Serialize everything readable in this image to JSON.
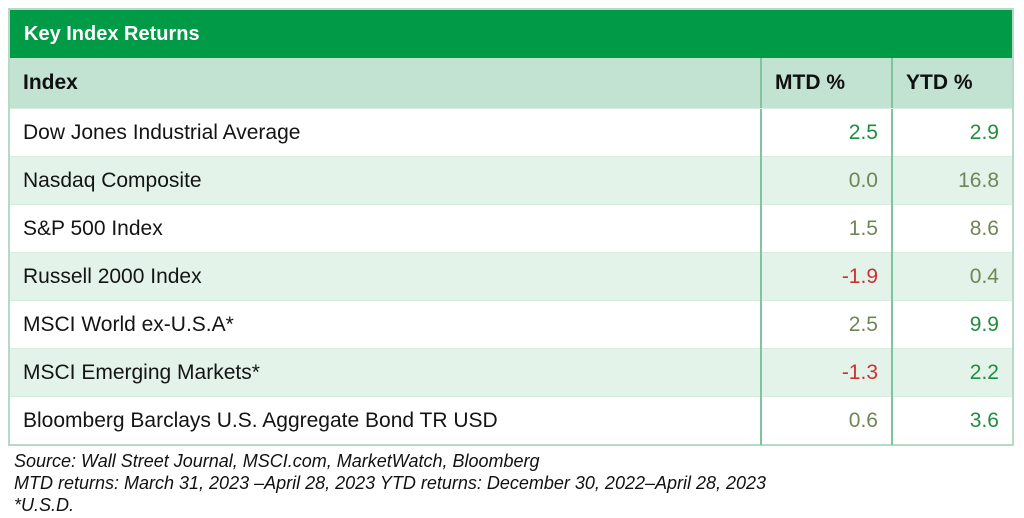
{
  "title": "Key Index Returns",
  "colors": {
    "header_green": "#019b48",
    "header_row_green": "#c2e3d1",
    "row_alt_green": "#e3f3ea",
    "value_green": "#1e8e3e",
    "value_olive": "#6f8655",
    "value_red": "#cc3333",
    "column_divider_green": "#7ec49f",
    "table_border_green": "#b5dac6"
  },
  "table": {
    "columns": [
      "Index",
      "MTD %",
      "YTD %"
    ],
    "rows": [
      {
        "name": "Dow Jones Industrial Average",
        "mtd": "2.5",
        "ytd": "2.9",
        "mtd_color": "green",
        "ytd_color": "green"
      },
      {
        "name": "Nasdaq Composite",
        "mtd": "0.0",
        "ytd": "16.8",
        "mtd_color": "olive",
        "ytd_color": "olive"
      },
      {
        "name": "S&P 500 Index",
        "mtd": "1.5",
        "ytd": "8.6",
        "mtd_color": "olive",
        "ytd_color": "olive"
      },
      {
        "name": "Russell 2000 Index",
        "mtd": "-1.9",
        "ytd": "0.4",
        "mtd_color": "red",
        "ytd_color": "olive"
      },
      {
        "name": "MSCI World ex-U.S.A*",
        "mtd": "2.5",
        "ytd": "9.9",
        "mtd_color": "olive",
        "ytd_color": "green"
      },
      {
        "name": "MSCI Emerging Markets*",
        "mtd": "-1.3",
        "ytd": "2.2",
        "mtd_color": "red",
        "ytd_color": "green"
      },
      {
        "name": "Bloomberg Barclays U.S. Aggregate Bond TR USD",
        "mtd": "0.6",
        "ytd": "3.6",
        "mtd_color": "olive",
        "ytd_color": "green"
      }
    ]
  },
  "footer": {
    "line1": "Source: Wall Street Journal, MSCI.com, MarketWatch, Bloomberg",
    "line2": "MTD returns: March 31, 2023 –April 28, 2023 YTD returns: December 30, 2022–April 28, 2023",
    "line3": "*U.S.D."
  },
  "chart_data": {
    "type": "table",
    "title": "Key Index Returns",
    "columns": [
      "Index",
      "MTD %",
      "YTD %"
    ],
    "rows": [
      [
        "Dow Jones Industrial Average",
        2.5,
        2.9
      ],
      [
        "Nasdaq Composite",
        0.0,
        16.8
      ],
      [
        "S&P 500 Index",
        1.5,
        8.6
      ],
      [
        "Russell 2000 Index",
        -1.9,
        0.4
      ],
      [
        "MSCI World ex-U.S.A*",
        2.5,
        9.9
      ],
      [
        "MSCI Emerging Markets*",
        -1.3,
        2.2
      ],
      [
        "Bloomberg Barclays U.S. Aggregate Bond TR USD",
        0.6,
        3.6
      ]
    ],
    "notes": [
      "Source: Wall Street Journal, MSCI.com, MarketWatch, Bloomberg",
      "MTD returns: March 31, 2023 –April 28, 2023 YTD returns: December 30, 2022–April 28, 2023",
      "*U.S.D."
    ]
  }
}
